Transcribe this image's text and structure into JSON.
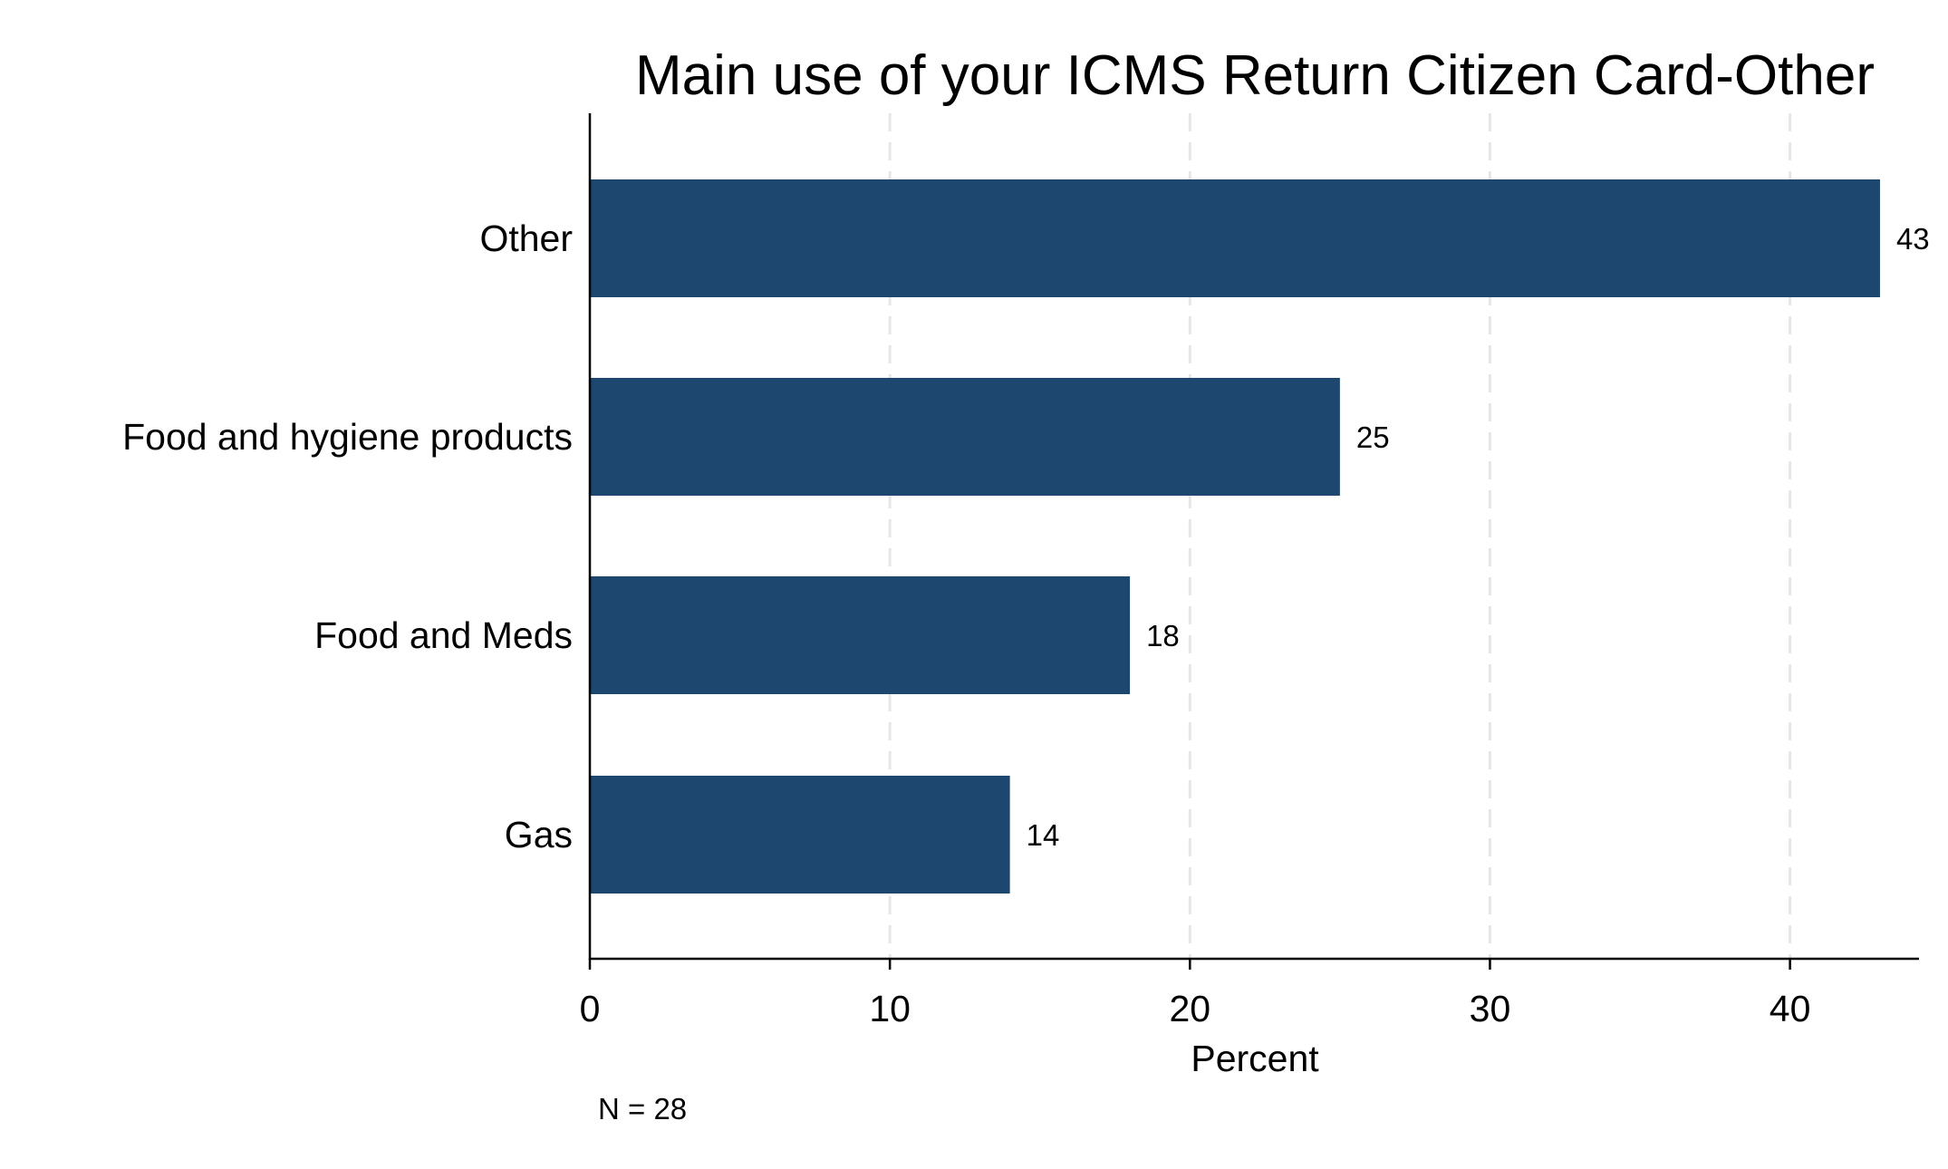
{
  "chart_data": {
    "type": "bar",
    "orientation": "horizontal",
    "title": "Main use of your ICMS Return Citizen Card-Other",
    "categories": [
      "Other",
      "Food and hygiene products",
      "Food and Meds",
      "Gas"
    ],
    "values": [
      43,
      25,
      18,
      14
    ],
    "value_labels": [
      "43",
      "25",
      "18",
      "14"
    ],
    "xlabel": "Percent",
    "ylabel": "",
    "xlim": [
      0,
      44.3
    ],
    "x_ticks": [
      0,
      10,
      20,
      30,
      40
    ],
    "x_tick_labels": [
      "0",
      "10",
      "20",
      "30",
      "40"
    ],
    "grid": true,
    "grid_style": "dashed-vertical",
    "legend": "none",
    "note": "N = 28",
    "colors": {
      "bar": "#1d476e",
      "grid": "#e6e6e6",
      "axis": "#000000",
      "text": "#000000"
    }
  }
}
